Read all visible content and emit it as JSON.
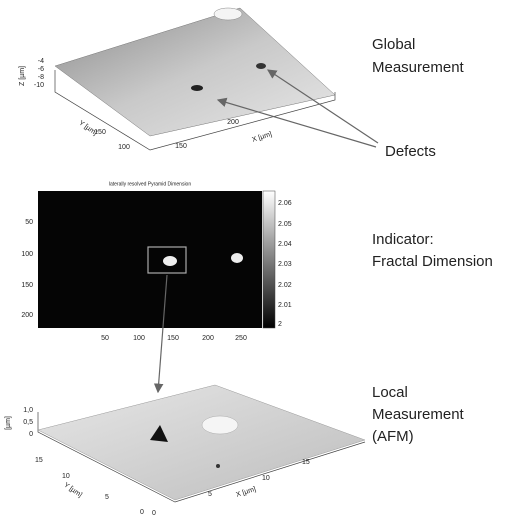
{
  "global": {
    "label_lines": [
      "Global",
      "Measurement"
    ],
    "defects": "Defects",
    "axes": {
      "z_label": "Z [µm]",
      "z_ticks": [
        "-4",
        "-6",
        "-8",
        "-10"
      ],
      "y_label": "Y [µm]",
      "y_ticks": [
        "100",
        "150"
      ],
      "x_label": "X [µm]",
      "x_ticks": [
        "150",
        "200"
      ]
    }
  },
  "indicator": {
    "label_lines": [
      "Indicator:",
      "Fractal Dimension"
    ],
    "map_title": "laterally resolved Pyramid Dimension",
    "y_ticks": [
      "50",
      "100",
      "150",
      "200"
    ],
    "x_ticks": [
      "50",
      "100",
      "150",
      "200",
      "250"
    ],
    "colorbar_ticks": [
      "2.06",
      "2.05",
      "2.04",
      "2.03",
      "2.02",
      "2.01",
      "2"
    ]
  },
  "local": {
    "label_lines": [
      "Local",
      "Measurement",
      "(AFM)"
    ],
    "axes": {
      "z_label": "[µm]",
      "z_ticks": [
        "1,0",
        "0,5",
        "0"
      ],
      "y_label": "Y [µm]",
      "y_ticks": [
        "15",
        "10",
        "5",
        "0"
      ],
      "x_label": "X [µm]",
      "x_ticks": [
        "0",
        "5",
        "10",
        "15"
      ]
    }
  }
}
